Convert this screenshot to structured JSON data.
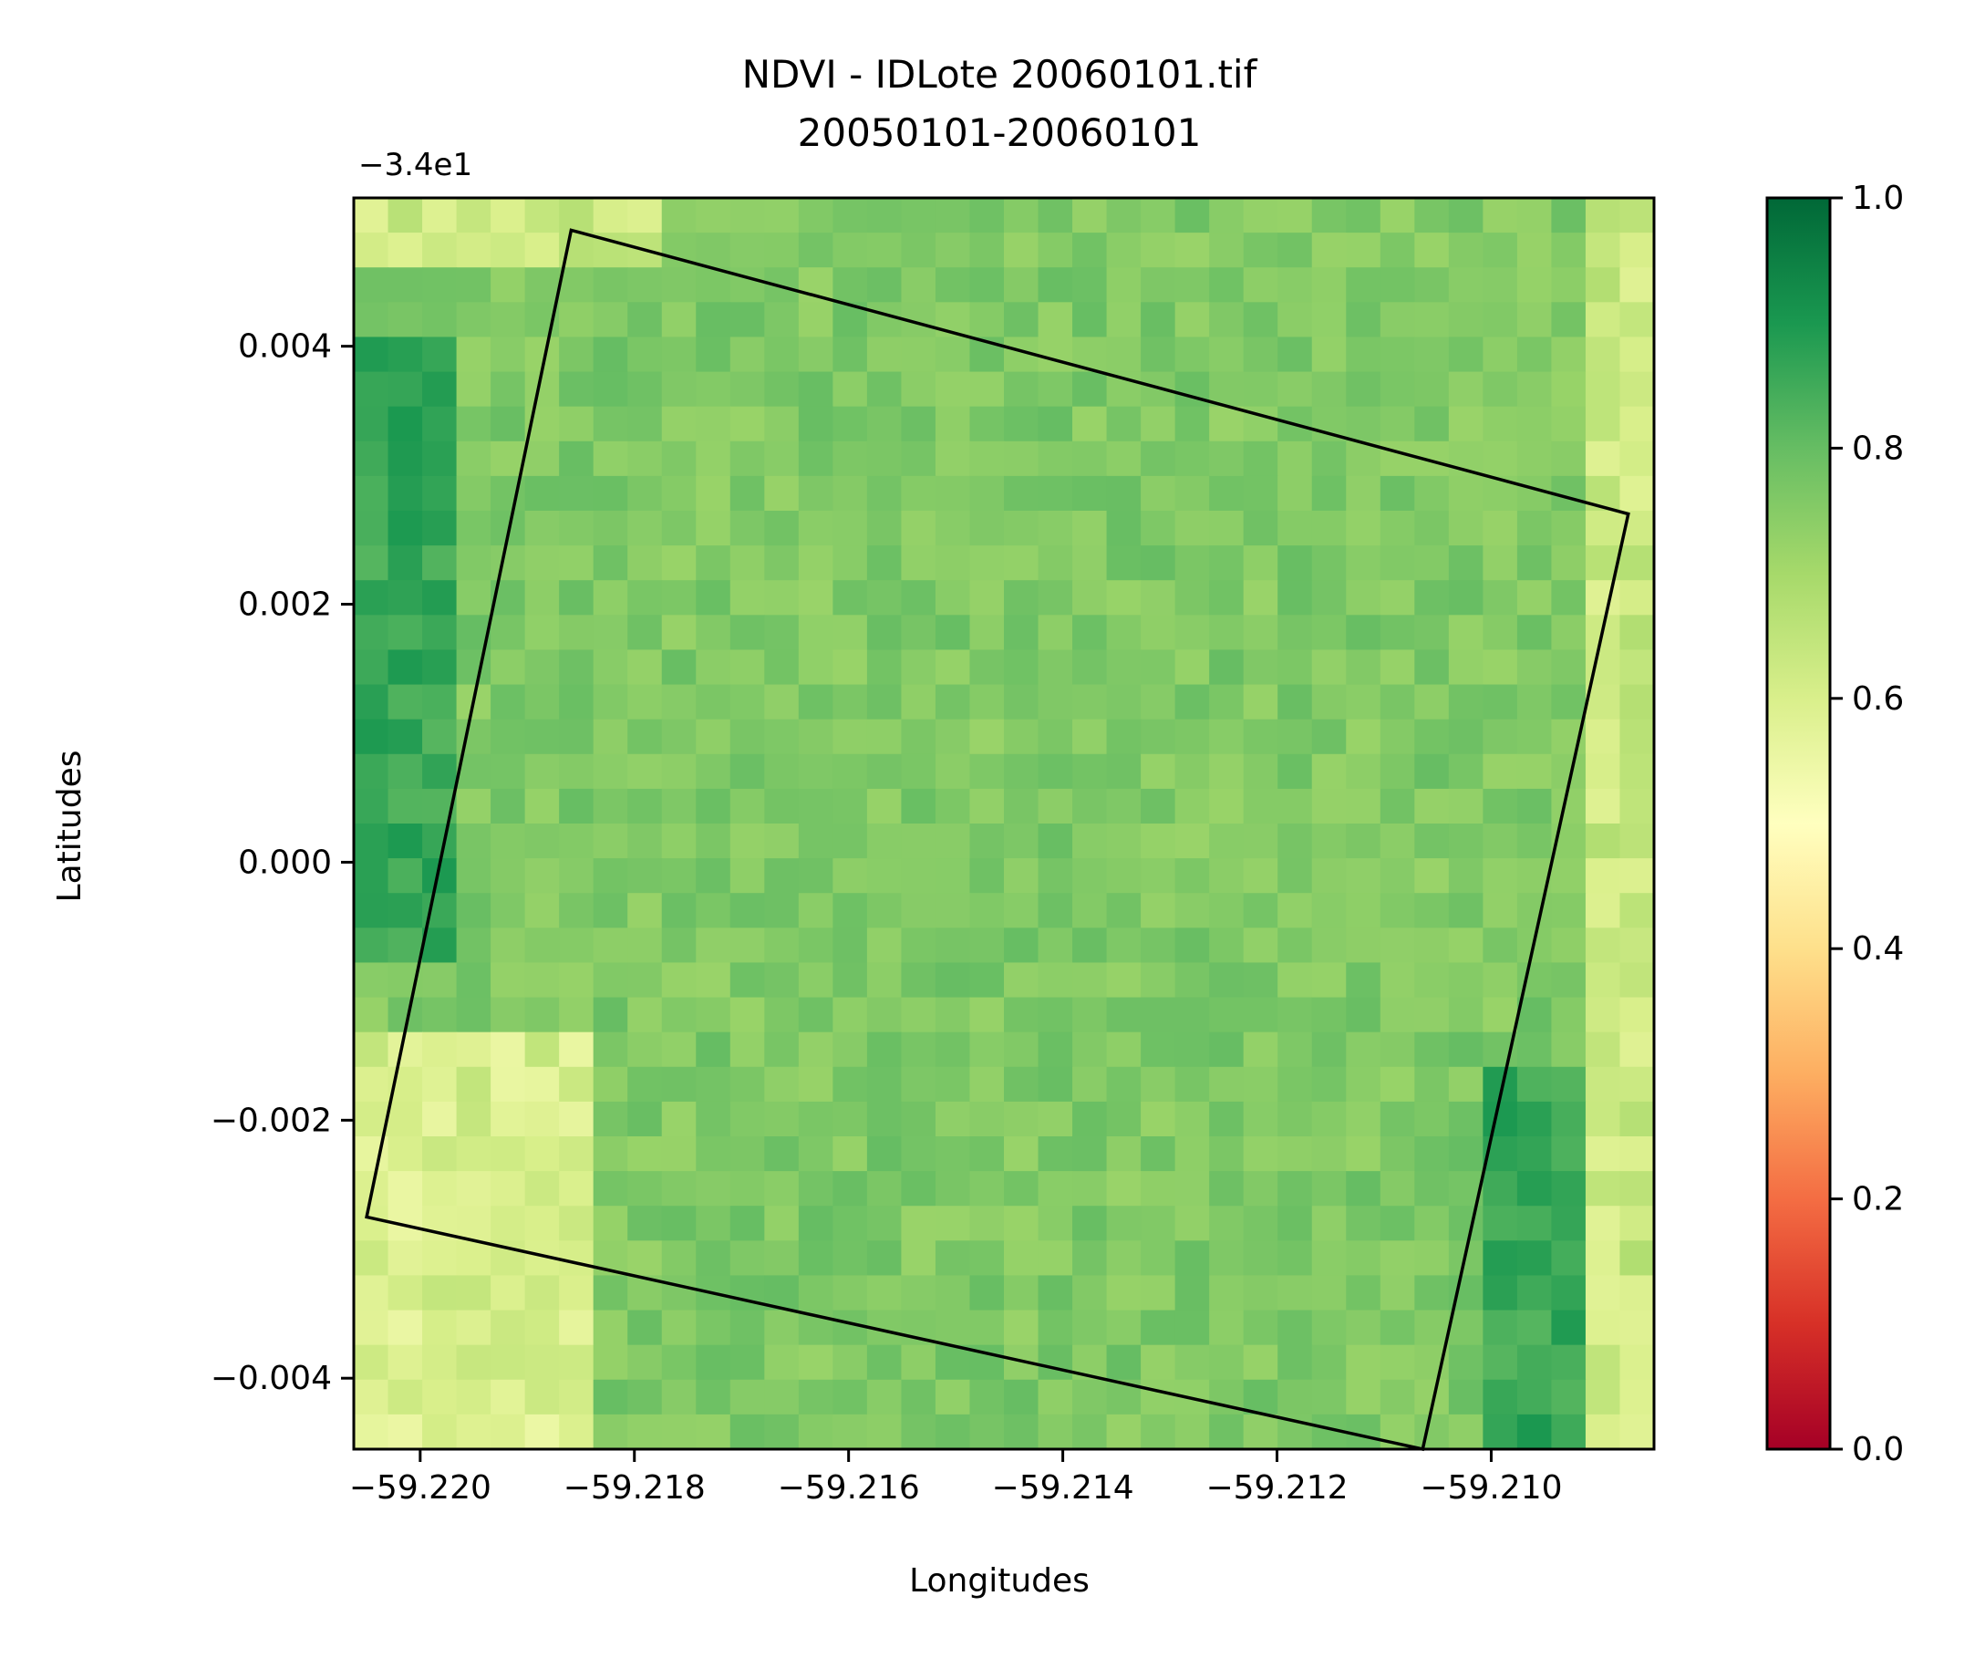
{
  "chart_data": {
    "type": "heatmap",
    "title": "NDVI - IDLote 20060101.tif",
    "subtitle": "20050101-20060101",
    "xlabel": "Longitudes",
    "ylabel": "Latitudes",
    "y_offset_label": "−3.4e1",
    "xlim": [
      -59.22062,
      -59.20848
    ],
    "ylim": [
      -0.00455,
      0.00515
    ],
    "x_ticks": [
      -59.22,
      -59.218,
      -59.216,
      -59.214,
      -59.212,
      -59.21
    ],
    "x_tick_labels": [
      "−59.220",
      "−59.218",
      "−59.216",
      "−59.214",
      "−59.212",
      "−59.210"
    ],
    "y_ticks": [
      0.004,
      0.002,
      0.0,
      -0.002,
      -0.004
    ],
    "y_tick_labels": [
      "0.004",
      "0.002",
      "0.000",
      "−0.002",
      "−0.004"
    ],
    "colormap": "RdYlGn",
    "colorbar": {
      "range": [
        0.0,
        1.0
      ],
      "ticks": [
        0.0,
        0.2,
        0.4,
        0.6,
        0.8,
        1.0
      ],
      "tick_labels": [
        "0.0",
        "0.2",
        "0.4",
        "0.6",
        "0.8",
        "1.0"
      ],
      "stops": [
        "#a50026",
        "#d73027",
        "#f46d43",
        "#fdae61",
        "#fee08b",
        "#ffffbf",
        "#d9ef8b",
        "#a6d96a",
        "#66bd63",
        "#1a9850",
        "#006837"
      ]
    },
    "grid_size": [
      36,
      38
    ],
    "ndvi_ranges": {
      "field_interior": [
        0.72,
        0.8
      ],
      "west_edge": [
        0.82,
        0.9
      ],
      "southeast_corner": [
        0.82,
        0.9
      ],
      "north_margin": [
        0.58,
        0.68
      ],
      "southwest_margin": [
        0.55,
        0.65
      ]
    },
    "polygon": {
      "stroke": "#000000",
      "vertices": [
        [
          -59.21859,
          0.0049
        ],
        [
          -59.20872,
          0.0027
        ],
        [
          -59.21064,
          -0.00455
        ],
        [
          -59.2205,
          -0.00275
        ]
      ]
    },
    "grid": false
  }
}
